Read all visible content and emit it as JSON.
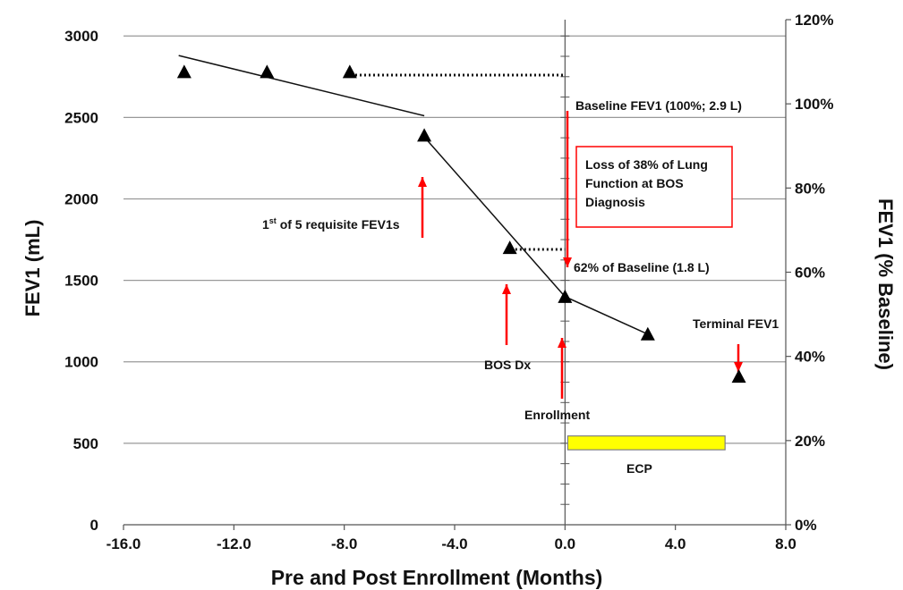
{
  "chart_data": {
    "type": "scatter",
    "xlabel": "Pre and Post Enrollment (Months)",
    "ylabel": "FEV1 (mL)",
    "y2label": "FEV1 (% Baseline)",
    "xlim": [
      -16,
      8
    ],
    "ylim": [
      0,
      3100
    ],
    "y2lim": [
      0,
      120
    ],
    "x_ticks": [
      "-16.0",
      "-12.0",
      "-8.0",
      "-4.0",
      "0.0",
      "4.0",
      "8.0"
    ],
    "y_ticks": [
      "0",
      "500",
      "1000",
      "1500",
      "2000",
      "2500",
      "3000"
    ],
    "y2_ticks": [
      "0%",
      "20%",
      "40%",
      "60%",
      "80%",
      "100%",
      "120%"
    ],
    "grid": true,
    "points": [
      {
        "x": -13.8,
        "y": 2780
      },
      {
        "x": -10.8,
        "y": 2780
      },
      {
        "x": -7.8,
        "y": 2780
      },
      {
        "x": -5.1,
        "y": 2390
      },
      {
        "x": -2.0,
        "y": 1700
      },
      {
        "x": 0.0,
        "y": 1400
      },
      {
        "x": 3.0,
        "y": 1170
      },
      {
        "x": 6.3,
        "y": 910
      }
    ],
    "trend_lines": [
      {
        "x": [
          -14.0,
          -5.1
        ],
        "y": [
          2880,
          2510
        ]
      },
      {
        "x": [
          -5.1,
          0.0,
          3.0
        ],
        "y": [
          2380,
          1400,
          1170
        ]
      }
    ],
    "reference_lines": [
      {
        "x": [
          -7.6,
          0.0
        ],
        "y": [
          2760,
          2760
        ]
      },
      {
        "x": [
          -1.8,
          0.0
        ],
        "y": [
          1690,
          1690
        ]
      }
    ],
    "ecp_bar": {
      "x_start": 0.1,
      "x_end": 5.8,
      "y_low": 460,
      "y_high": 545,
      "color": "#FFFF00"
    },
    "annotations": {
      "baseline": "Baseline FEV1 (100%; 2.9 L)",
      "loss_line1": "Loss of 38% of Lung",
      "loss_line2": "Function at BOS",
      "loss_line3": "Diagnosis",
      "pct62": "62% of Baseline (1.8 L)",
      "first_pre": "1",
      "first_sup": "st",
      "first_post": " of 5 requisite FEV1s",
      "bos_dx": "BOS Dx",
      "enrollment": "Enrollment",
      "terminal": "Terminal FEV1",
      "ecp": "ECP"
    },
    "colors": {
      "arrow": "#FF0000",
      "box": "#FF0000",
      "marker": "#000000",
      "grid": "#999999",
      "ecp_fill": "#FFFF00",
      "ecp_stroke": "#808080"
    }
  }
}
